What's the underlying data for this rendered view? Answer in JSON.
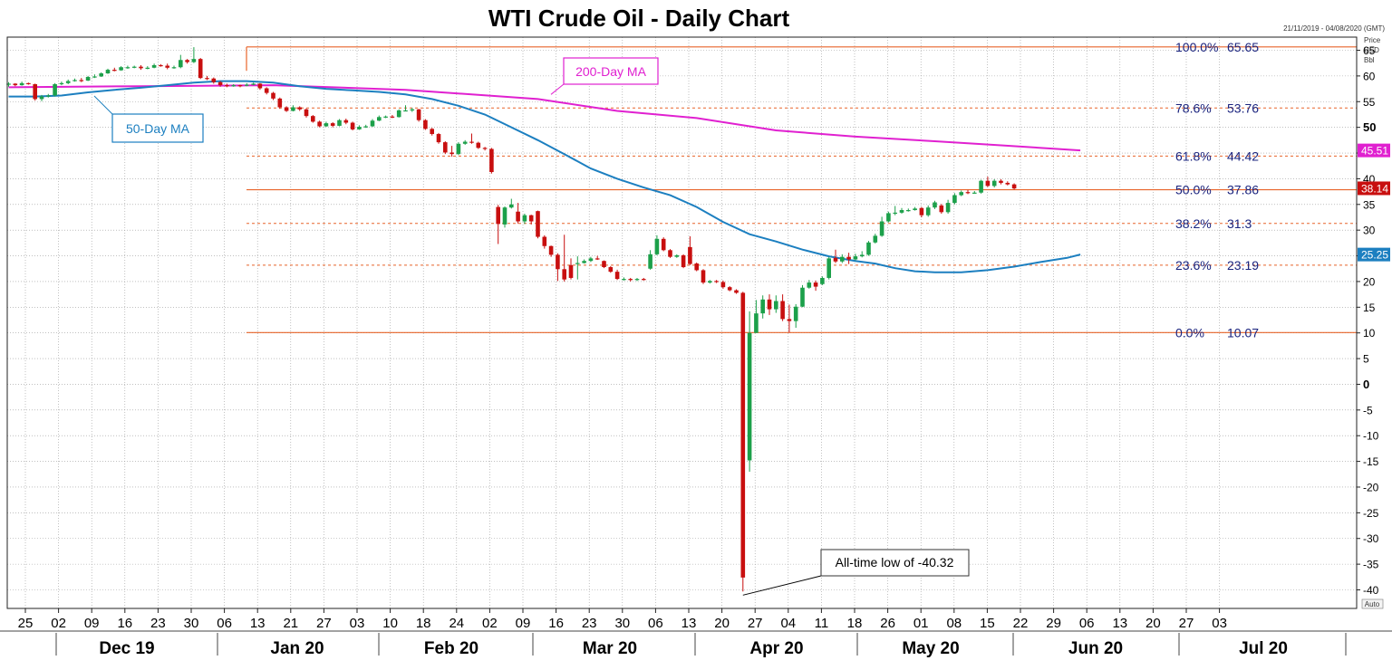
{
  "colors": {
    "fib_line": "#e8642a",
    "ma50": "#1c7fc0",
    "ma200": "#e020d0",
    "up_candle": "#1ca04a",
    "down_candle": "#c80f0f",
    "grid": "#9a9a9a",
    "fib_text": "#1a237e"
  },
  "chart_data": {
    "type": "candlestick",
    "title": "WTI Crude Oil - Daily Chart",
    "date_range": "21/11/2019 - 04/08/2020 (GMT)",
    "price_label": [
      "Price",
      "USD",
      "Bbl"
    ],
    "auto_label": "Auto",
    "grid": true,
    "ylim": [
      -42,
      67
    ],
    "y_ticks": [
      65,
      60,
      55,
      50,
      45,
      40,
      35,
      30,
      25,
      20,
      15,
      10,
      5,
      0,
      -5,
      -10,
      -15,
      -20,
      -25,
      -30,
      -35,
      -40
    ],
    "y_bold_ticks": [
      50,
      0
    ],
    "x_ticks": [
      "25",
      "02",
      "09",
      "16",
      "23",
      "30",
      "06",
      "13",
      "21",
      "27",
      "03",
      "10",
      "18",
      "24",
      "02",
      "09",
      "16",
      "23",
      "30",
      "06",
      "13",
      "20",
      "27",
      "04",
      "11",
      "18",
      "26",
      "01",
      "08",
      "15",
      "22",
      "29",
      "06",
      "13",
      "20",
      "27",
      "03"
    ],
    "months": [
      "Dec 19",
      "Jan 20",
      "Feb 20",
      "Mar 20",
      "Apr 20",
      "May 20",
      "Jun 20",
      "Jul 20"
    ],
    "candles": [
      [
        58.3,
        58.5,
        58.8,
        57.9
      ],
      [
        58.5,
        58.2,
        58.6,
        58.0
      ],
      [
        58.2,
        58.6,
        58.9,
        58.1
      ],
      [
        58.6,
        58.4,
        58.7,
        58.3
      ],
      [
        58.4,
        55.5,
        58.5,
        55.2
      ],
      [
        55.5,
        56.0,
        56.3,
        55.1
      ],
      [
        56.0,
        56.2,
        56.5,
        55.8
      ],
      [
        56.2,
        58.4,
        58.6,
        56.0
      ],
      [
        58.4,
        58.6,
        58.9,
        58.2
      ],
      [
        58.6,
        59.0,
        59.3,
        58.4
      ],
      [
        59.0,
        59.2,
        59.5,
        58.9
      ],
      [
        59.2,
        59.1,
        59.6,
        58.8
      ],
      [
        59.1,
        59.8,
        60.0,
        59.0
      ],
      [
        59.8,
        59.9,
        60.3,
        59.6
      ],
      [
        59.9,
        60.5,
        60.7,
        59.8
      ],
      [
        60.5,
        61.2,
        61.4,
        60.4
      ],
      [
        61.2,
        61.1,
        61.6,
        60.9
      ],
      [
        61.1,
        61.7,
        61.9,
        61.0
      ],
      [
        61.7,
        61.7,
        62.0,
        61.4
      ],
      [
        61.7,
        61.8,
        62.0,
        61.5
      ],
      [
        61.8,
        61.5,
        62.1,
        61.2
      ],
      [
        61.5,
        61.6,
        61.9,
        61.3
      ],
      [
        61.6,
        62.1,
        62.4,
        61.5
      ],
      [
        62.1,
        62.0,
        62.3,
        61.8
      ],
      [
        62.0,
        61.6,
        62.4,
        61.3
      ],
      [
        61.6,
        61.7,
        62.0,
        61.4
      ],
      [
        61.7,
        63.1,
        64.1,
        61.5
      ],
      [
        63.1,
        62.7,
        63.3,
        62.4
      ],
      [
        62.7,
        63.3,
        65.6,
        62.5
      ],
      [
        63.3,
        59.6,
        63.5,
        59.4
      ],
      [
        59.6,
        59.5,
        60.0,
        59.2
      ],
      [
        59.5,
        58.8,
        59.7,
        58.5
      ],
      [
        58.8,
        58.2,
        59.0,
        57.9
      ],
      [
        58.2,
        58.1,
        58.5,
        57.8
      ],
      [
        58.1,
        58.2,
        58.4,
        57.9
      ],
      [
        58.2,
        58.1,
        58.3,
        57.8
      ],
      [
        58.1,
        58.3,
        58.6,
        58.0
      ],
      [
        58.3,
        58.5,
        58.7,
        58.2
      ],
      [
        58.5,
        57.6,
        58.6,
        57.3
      ],
      [
        57.6,
        56.7,
        57.8,
        56.4
      ],
      [
        56.7,
        55.6,
        56.9,
        55.3
      ],
      [
        55.6,
        53.9,
        55.8,
        53.6
      ],
      [
        53.9,
        53.2,
        54.1,
        53.0
      ],
      [
        53.2,
        53.9,
        54.3,
        53.1
      ],
      [
        53.9,
        53.5,
        54.1,
        53.2
      ],
      [
        53.5,
        52.2,
        53.7,
        51.9
      ],
      [
        52.2,
        51.1,
        52.4,
        50.9
      ],
      [
        51.1,
        50.2,
        51.3,
        50.0
      ],
      [
        50.2,
        50.8,
        51.1,
        50.1
      ],
      [
        50.8,
        50.3,
        51.0,
        50.0
      ],
      [
        50.3,
        51.4,
        51.6,
        50.2
      ],
      [
        51.4,
        50.9,
        51.7,
        50.6
      ],
      [
        50.9,
        49.6,
        51.1,
        49.4
      ],
      [
        49.6,
        50.1,
        50.4,
        49.5
      ],
      [
        50.1,
        50.2,
        50.5,
        49.9
      ],
      [
        50.2,
        51.3,
        51.6,
        50.1
      ],
      [
        51.3,
        52.0,
        52.3,
        51.2
      ],
      [
        52.0,
        52.1,
        52.3,
        51.8
      ],
      [
        52.1,
        52.0,
        52.4,
        51.8
      ],
      [
        52.0,
        53.3,
        53.5,
        51.9
      ],
      [
        53.3,
        53.3,
        54.3,
        53.1
      ],
      [
        53.3,
        53.5,
        53.8,
        53.0
      ],
      [
        53.5,
        51.4,
        53.6,
        51.1
      ],
      [
        51.4,
        49.7,
        51.6,
        49.5
      ],
      [
        49.7,
        48.7,
        49.9,
        48.4
      ],
      [
        48.7,
        47.1,
        48.9,
        46.8
      ],
      [
        47.1,
        45.1,
        47.3,
        44.8
      ],
      [
        45.1,
        44.8,
        46.4,
        44.3
      ],
      [
        44.8,
        46.8,
        47.1,
        44.6
      ],
      [
        46.8,
        47.2,
        47.5,
        46.6
      ],
      [
        47.2,
        47.0,
        48.8,
        46.8
      ],
      [
        47.0,
        46.0,
        47.2,
        45.8
      ],
      [
        46.0,
        45.8,
        46.2,
        45.5
      ],
      [
        45.8,
        41.3,
        46.0,
        41.0
      ],
      [
        34.5,
        31.2,
        34.9,
        27.3
      ],
      [
        31.1,
        34.4,
        34.6,
        30.5
      ],
      [
        34.4,
        35.0,
        36.1,
        34.2
      ],
      [
        33.6,
        31.7,
        35.3,
        31.3
      ],
      [
        31.7,
        32.9,
        33.2,
        31.2
      ],
      [
        32.9,
        31.7,
        33.0,
        31.1
      ],
      [
        33.7,
        28.7,
        33.8,
        28.4
      ],
      [
        28.7,
        26.9,
        29.0,
        26.4
      ],
      [
        26.9,
        25.2,
        27.0,
        24.8
      ],
      [
        25.2,
        22.4,
        25.5,
        20.1
      ],
      [
        22.4,
        20.4,
        29.1,
        20.0
      ],
      [
        23.2,
        20.7,
        24.5,
        20.4
      ],
      [
        23.5,
        23.6,
        24.9,
        20.4
      ],
      [
        23.6,
        24.0,
        24.3,
        23.5
      ],
      [
        24.0,
        24.5,
        24.8,
        23.8
      ],
      [
        24.5,
        24.4,
        25.0,
        24.2
      ],
      [
        24.0,
        22.8,
        24.1,
        22.6
      ],
      [
        22.8,
        21.9,
        23.0,
        21.7
      ],
      [
        21.9,
        20.5,
        22.3,
        20.3
      ],
      [
        20.5,
        20.5,
        20.8,
        20.2
      ],
      [
        20.5,
        20.3,
        20.7,
        20.0
      ],
      [
        20.3,
        20.5,
        20.7,
        20.1
      ],
      [
        20.5,
        20.4,
        20.7,
        20.2
      ],
      [
        22.5,
        25.3,
        26.1,
        22.3
      ],
      [
        25.3,
        28.3,
        29.0,
        25.1
      ],
      [
        28.3,
        26.1,
        28.6,
        25.9
      ],
      [
        26.1,
        24.8,
        26.3,
        24.6
      ],
      [
        24.8,
        25.1,
        25.3,
        24.6
      ],
      [
        25.1,
        22.8,
        25.3,
        22.6
      ],
      [
        26.7,
        23.4,
        28.8,
        23.2
      ],
      [
        23.5,
        22.2,
        23.7,
        22.0
      ],
      [
        22.2,
        19.8,
        22.4,
        19.5
      ],
      [
        19.8,
        20.1,
        20.3,
        19.6
      ],
      [
        20.1,
        19.9,
        20.3,
        19.7
      ],
      [
        19.9,
        18.9,
        20.2,
        18.6
      ],
      [
        18.9,
        18.3,
        19.1,
        18.1
      ],
      [
        18.3,
        17.8,
        18.5,
        17.6
      ],
      [
        17.8,
        -37.6,
        18.0,
        -40.3
      ],
      [
        -14.8,
        10.0,
        14.2,
        -17.0
      ],
      [
        10.0,
        13.8,
        16.4,
        10.0
      ],
      [
        13.8,
        16.5,
        17.3,
        12.8
      ],
      [
        16.5,
        14.6,
        17.5,
        13.5
      ],
      [
        14.6,
        16.2,
        17.3,
        13.9
      ],
      [
        16.2,
        12.7,
        17.5,
        12.3
      ],
      [
        12.7,
        12.3,
        15.5,
        10.1
      ],
      [
        12.3,
        15.1,
        15.6,
        11.0
      ],
      [
        15.1,
        18.8,
        19.3,
        15.0
      ],
      [
        18.8,
        19.8,
        20.3,
        18.6
      ],
      [
        19.8,
        19.0,
        20.2,
        18.2
      ],
      [
        19.5,
        20.7,
        21.0,
        19.3
      ],
      [
        20.7,
        24.5,
        24.8,
        20.4
      ],
      [
        24.6,
        23.9,
        26.2,
        23.6
      ],
      [
        23.9,
        24.8,
        25.3,
        23.6
      ],
      [
        24.8,
        24.3,
        25.6,
        23.4
      ],
      [
        24.3,
        24.9,
        25.4,
        24.1
      ],
      [
        24.9,
        25.2,
        25.9,
        24.7
      ],
      [
        25.2,
        27.6,
        27.9,
        25.0
      ],
      [
        27.6,
        28.9,
        29.3,
        27.4
      ],
      [
        28.9,
        31.7,
        32.6,
        28.7
      ],
      [
        31.7,
        33.3,
        33.6,
        31.5
      ],
      [
        33.3,
        33.4,
        34.7,
        32.9
      ],
      [
        33.4,
        33.9,
        34.3,
        33.2
      ],
      [
        33.9,
        33.9,
        34.2,
        33.6
      ],
      [
        33.9,
        34.2,
        34.5,
        33.8
      ],
      [
        34.3,
        32.9,
        34.5,
        32.5
      ],
      [
        32.9,
        34.4,
        34.8,
        32.6
      ],
      [
        34.4,
        35.4,
        35.7,
        34.1
      ],
      [
        34.8,
        33.5,
        35.1,
        33.2
      ],
      [
        33.5,
        35.3,
        35.9,
        33.2
      ],
      [
        35.3,
        36.8,
        37.2,
        35.0
      ],
      [
        36.8,
        37.4,
        37.7,
        36.6
      ],
      [
        37.4,
        37.3,
        37.8,
        37.0
      ],
      [
        37.3,
        37.3,
        37.6,
        37.1
      ],
      [
        37.3,
        39.6,
        39.8,
        37.1
      ],
      [
        39.6,
        38.6,
        40.4,
        38.4
      ],
      [
        38.6,
        39.6,
        39.9,
        38.3
      ],
      [
        39.6,
        39.2,
        39.9,
        38.9
      ],
      [
        39.2,
        38.9,
        39.5,
        38.7
      ],
      [
        38.9,
        38.1,
        39.1,
        37.9
      ]
    ],
    "ma50": [
      [
        0,
        56.0
      ],
      [
        4,
        56.0
      ],
      [
        8,
        56.2
      ],
      [
        12,
        56.8
      ],
      [
        16,
        57.3
      ],
      [
        20,
        57.7
      ],
      [
        24,
        58.2
      ],
      [
        28,
        58.7
      ],
      [
        32,
        59.0
      ],
      [
        36,
        59.0
      ],
      [
        40,
        58.7
      ],
      [
        44,
        58.0
      ],
      [
        48,
        57.5
      ],
      [
        52,
        57.2
      ],
      [
        56,
        56.9
      ],
      [
        60,
        56.4
      ],
      [
        64,
        55.5
      ],
      [
        68,
        54.2
      ],
      [
        72,
        52.5
      ],
      [
        76,
        50.0
      ],
      [
        80,
        47.5
      ],
      [
        84,
        44.8
      ],
      [
        88,
        42.0
      ],
      [
        92,
        40.0
      ],
      [
        96,
        38.3
      ],
      [
        100,
        36.8
      ],
      [
        104,
        34.5
      ],
      [
        108,
        31.6
      ],
      [
        112,
        29.2
      ],
      [
        116,
        27.8
      ],
      [
        120,
        26.2
      ],
      [
        124,
        24.9
      ],
      [
        128,
        24.0
      ],
      [
        131,
        23.5
      ],
      [
        134,
        22.6
      ],
      [
        137,
        22.0
      ],
      [
        140,
        21.8
      ],
      [
        144,
        21.8
      ],
      [
        148,
        22.2
      ],
      [
        152,
        22.9
      ],
      [
        156,
        23.8
      ],
      [
        160,
        24.6
      ],
      [
        162,
        25.25
      ]
    ],
    "ma200": [
      [
        0,
        57.8
      ],
      [
        20,
        58.0
      ],
      [
        40,
        58.2
      ],
      [
        60,
        57.3
      ],
      [
        80,
        55.5
      ],
      [
        92,
        53.2
      ],
      [
        104,
        51.8
      ],
      [
        116,
        49.4
      ],
      [
        128,
        48.2
      ],
      [
        140,
        47.3
      ],
      [
        150,
        46.5
      ],
      [
        162,
        45.51
      ]
    ],
    "fibonacci": [
      {
        "pct": "100.0%",
        "value": "65.65",
        "level": 65.65,
        "style": "solid"
      },
      {
        "pct": "78.6%",
        "value": "53.76",
        "level": 53.76,
        "style": "dashed"
      },
      {
        "pct": "61.8%",
        "value": "44.42",
        "level": 44.42,
        "style": "dashed"
      },
      {
        "pct": "50.0%",
        "value": "37.86",
        "level": 37.86,
        "style": "solid"
      },
      {
        "pct": "38.2%",
        "value": "31.3",
        "level": 31.3,
        "style": "dashed"
      },
      {
        "pct": "23.6%",
        "value": "23.19",
        "level": 23.19,
        "style": "dashed"
      },
      {
        "pct": "0.0%",
        "value": "10.07",
        "level": 10.07,
        "style": "solid"
      }
    ],
    "price_tags": [
      {
        "value": "45.51",
        "level": 45.51,
        "color": "#e020d0"
      },
      {
        "value": "38.14",
        "level": 38.14,
        "color": "#c80f0f"
      },
      {
        "value": "25.25",
        "level": 25.25,
        "color": "#1c7fc0"
      }
    ],
    "annotations": {
      "ma50_label": "50-Day MA",
      "ma200_label": "200-Day MA",
      "low_label": "All-time low of -40.32",
      "low_value": -40.32
    }
  }
}
